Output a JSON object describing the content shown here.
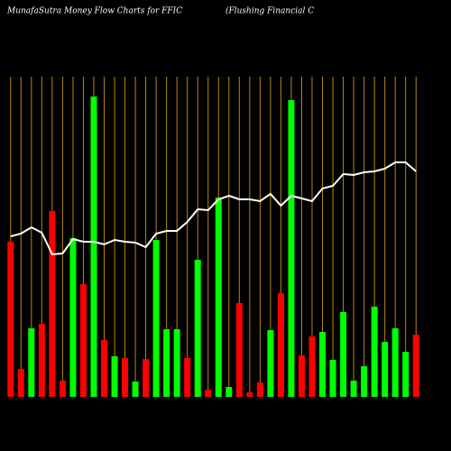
{
  "chart_data": {
    "type": "bar",
    "title": "MunafaSutra  Money Flow  Charts for FFIC",
    "subtitle": "(Flushing Financial C",
    "categories": [
      null,
      null,
      null,
      null,
      null,
      null,
      null,
      null,
      null,
      null,
      null,
      null,
      null,
      null,
      null,
      null,
      null,
      null,
      null,
      null,
      null,
      null,
      null,
      null,
      null,
      null,
      null,
      null,
      null,
      null,
      null,
      null,
      null,
      null,
      null,
      null,
      null,
      null,
      null,
      null
    ],
    "values": [
      172,
      31,
      76,
      81,
      206,
      18,
      176,
      125,
      333,
      63,
      45,
      43,
      17,
      42,
      174,
      75,
      75,
      43,
      152,
      8,
      221,
      11,
      104,
      5,
      16,
      74,
      115,
      329,
      46,
      67,
      72,
      41,
      94,
      18,
      34,
      100,
      61,
      76,
      50,
      69
    ],
    "colors": [
      "#ff0000",
      "#ff0000",
      "#00ff00",
      "#ff0000",
      "#ff0000",
      "#ff0000",
      "#00ff00",
      "#ff0000",
      "#00ff00",
      "#ff0000",
      "#00ff00",
      "#ff0000",
      "#00ff00",
      "#ff0000",
      "#00ff00",
      "#00ff00",
      "#00ff00",
      "#ff0000",
      "#00ff00",
      "#ff0000",
      "#00ff00",
      "#00ff00",
      "#ff0000",
      "#ff0000",
      "#ff0000",
      "#00ff00",
      "#ff0000",
      "#00ff00",
      "#ff0000",
      "#ff0000",
      "#00ff00",
      "#00ff00",
      "#00ff00",
      "#00ff00",
      "#00ff00",
      "#00ff00",
      "#00ff00",
      "#00ff00",
      "#00ff00",
      "#ff0000"
    ],
    "line": {
      "color": "#ffffff",
      "values": [
        178,
        181,
        188,
        182,
        158,
        159,
        175,
        172,
        172,
        169,
        174,
        172,
        171,
        166,
        181,
        184,
        184,
        194,
        208,
        207,
        219,
        223,
        219,
        219,
        217,
        225,
        212,
        223,
        220,
        217,
        231,
        234,
        247,
        246,
        249,
        250,
        253,
        260,
        260,
        250
      ]
    },
    "ylim": [
      0,
      355
    ],
    "column_line_color": "#b8860b",
    "background": "#000000"
  }
}
